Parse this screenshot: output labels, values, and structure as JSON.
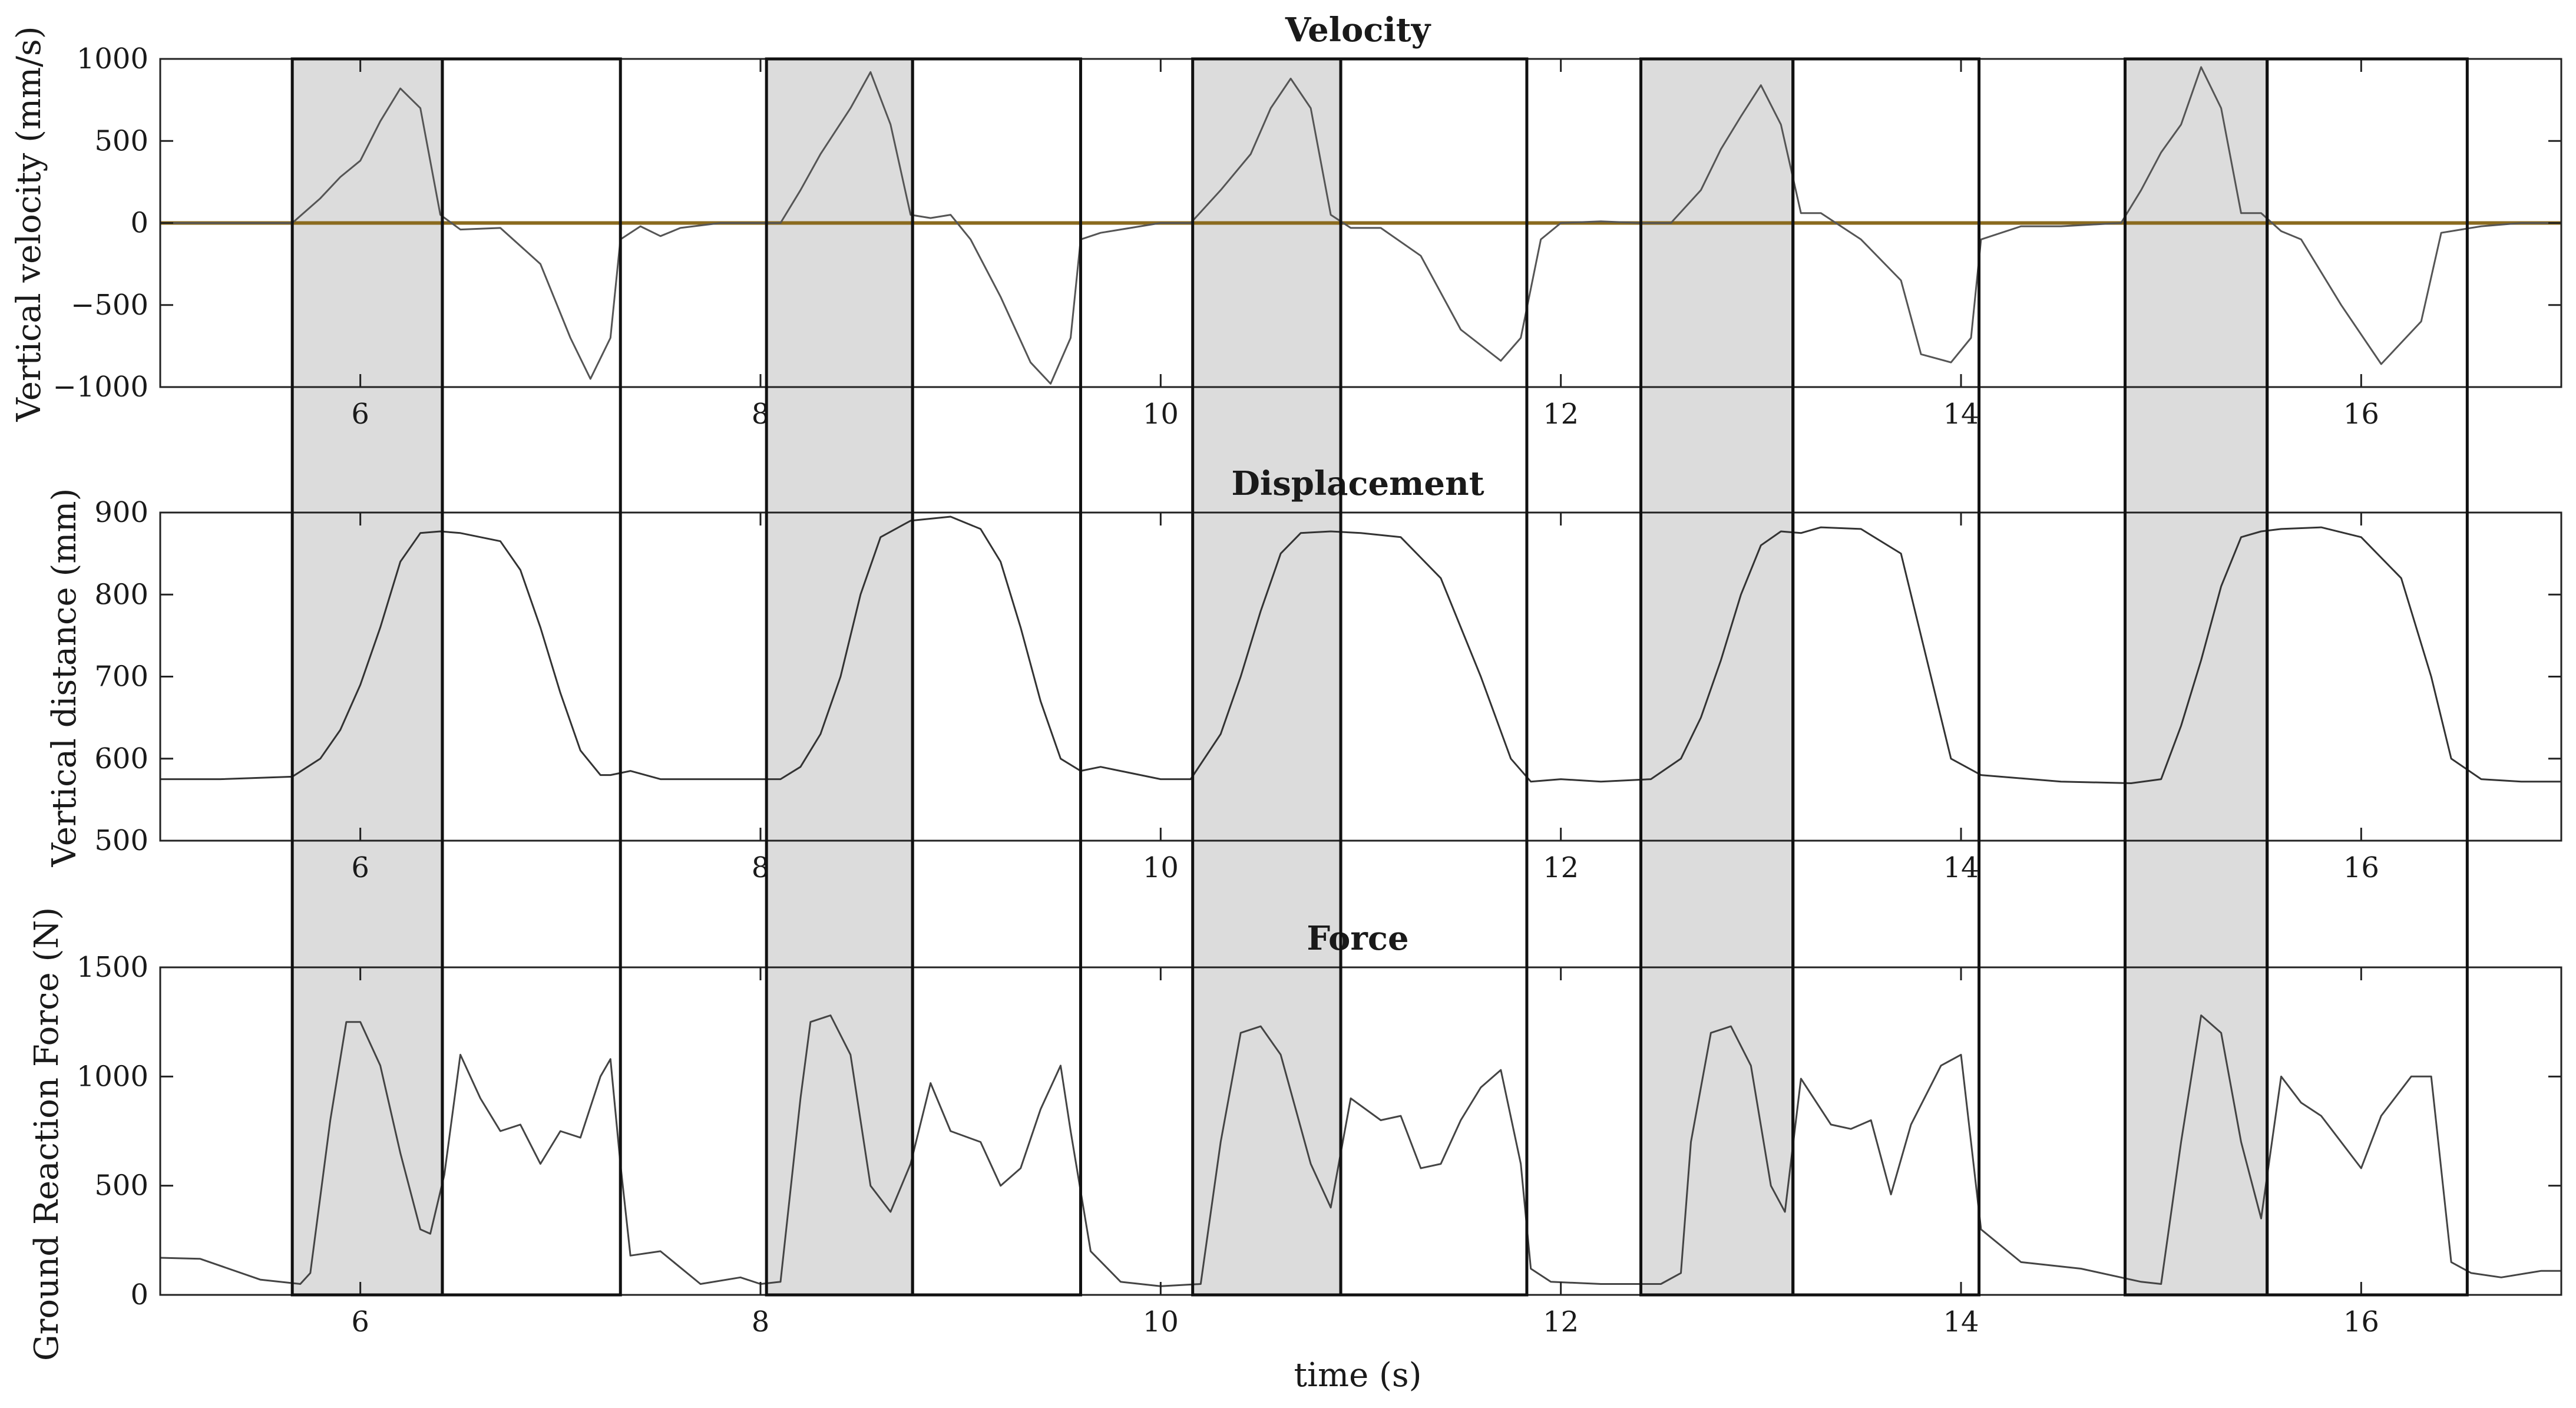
{
  "chart_data": [
    {
      "type": "line",
      "title": "Velocity",
      "xlabel": "",
      "ylabel": "Vertical velocity (mm/s)",
      "xlim": [
        5,
        17
      ],
      "ylim": [
        -1000,
        1000
      ],
      "xticks": [
        6,
        8,
        10,
        12,
        14,
        16
      ],
      "yticks": [
        -1000,
        -500,
        0,
        500,
        1000
      ],
      "grid": false,
      "zero_line_color": "#8a6a1e",
      "series": [
        {
          "color": "#555555",
          "x": [
            5.0,
            5.3,
            5.6,
            5.66,
            5.8,
            5.9,
            6.0,
            6.1,
            6.2,
            6.3,
            6.4,
            6.5,
            6.7,
            6.9,
            7.05,
            7.15,
            7.25,
            7.3,
            7.4,
            7.5,
            7.6,
            7.8,
            8.0,
            8.1,
            8.2,
            8.3,
            8.45,
            8.55,
            8.65,
            8.75,
            8.85,
            8.95,
            9.05,
            9.2,
            9.35,
            9.45,
            9.55,
            9.6,
            9.7,
            9.8,
            10.0,
            10.15,
            10.3,
            10.45,
            10.55,
            10.65,
            10.75,
            10.85,
            10.95,
            11.1,
            11.3,
            11.5,
            11.7,
            11.8,
            11.9,
            12.0,
            12.2,
            12.4,
            12.55,
            12.7,
            12.8,
            12.9,
            13.0,
            13.1,
            13.2,
            13.3,
            13.5,
            13.7,
            13.8,
            13.95,
            14.05,
            14.1,
            14.3,
            14.5,
            14.8,
            14.9,
            15.0,
            15.1,
            15.2,
            15.3,
            15.4,
            15.5,
            15.6,
            15.7,
            15.9,
            16.1,
            16.3,
            16.4,
            16.5,
            16.6,
            16.8,
            17.0
          ],
          "y": [
            0,
            0,
            0,
            0,
            150,
            280,
            380,
            620,
            820,
            700,
            50,
            -40,
            -30,
            -250,
            -700,
            -950,
            -700,
            -100,
            -20,
            -80,
            -30,
            0,
            0,
            0,
            200,
            420,
            700,
            920,
            600,
            50,
            30,
            50,
            -100,
            -450,
            -850,
            -980,
            -700,
            -100,
            -60,
            -40,
            0,
            0,
            200,
            420,
            700,
            880,
            700,
            50,
            -30,
            -30,
            -200,
            -650,
            -840,
            -700,
            -100,
            0,
            10,
            0,
            0,
            200,
            450,
            650,
            840,
            600,
            60,
            60,
            -100,
            -350,
            -800,
            -850,
            -700,
            -100,
            -20,
            -20,
            0,
            200,
            430,
            600,
            950,
            700,
            60,
            60,
            -50,
            -100,
            -500,
            -860,
            -600,
            -60,
            -40,
            -20,
            0,
            0
          ]
        }
      ]
    },
    {
      "type": "line",
      "title": "Displacement",
      "xlabel": "",
      "ylabel": "Vertical distance (mm)",
      "xlim": [
        5,
        17
      ],
      "ylim": [
        500,
        900
      ],
      "xticks": [
        6,
        8,
        10,
        12,
        14,
        16
      ],
      "yticks": [
        500,
        600,
        700,
        800,
        900
      ],
      "grid": false,
      "series": [
        {
          "color": "#333333",
          "x": [
            5.0,
            5.3,
            5.66,
            5.8,
            5.9,
            6.0,
            6.1,
            6.2,
            6.3,
            6.4,
            6.5,
            6.7,
            6.8,
            6.9,
            7.0,
            7.1,
            7.2,
            7.25,
            7.35,
            7.5,
            7.8,
            8.1,
            8.2,
            8.3,
            8.4,
            8.5,
            8.6,
            8.75,
            8.95,
            9.1,
            9.2,
            9.3,
            9.4,
            9.5,
            9.6,
            9.7,
            10.0,
            10.15,
            10.3,
            10.4,
            10.5,
            10.6,
            10.7,
            10.85,
            11.0,
            11.2,
            11.4,
            11.6,
            11.75,
            11.85,
            12.0,
            12.2,
            12.45,
            12.6,
            12.7,
            12.8,
            12.9,
            13.0,
            13.1,
            13.2,
            13.3,
            13.5,
            13.7,
            13.85,
            13.95,
            14.1,
            14.5,
            14.85,
            15.0,
            15.1,
            15.2,
            15.3,
            15.4,
            15.5,
            15.6,
            15.8,
            16.0,
            16.2,
            16.35,
            16.45,
            16.6,
            16.8,
            17.0
          ],
          "y": [
            575,
            575,
            578,
            600,
            635,
            690,
            760,
            840,
            875,
            877,
            875,
            865,
            830,
            760,
            680,
            610,
            580,
            580,
            585,
            575,
            575,
            575,
            590,
            630,
            700,
            800,
            870,
            890,
            895,
            880,
            840,
            760,
            670,
            600,
            585,
            590,
            575,
            575,
            630,
            700,
            780,
            850,
            875,
            877,
            875,
            870,
            820,
            700,
            600,
            572,
            575,
            572,
            575,
            600,
            650,
            720,
            800,
            860,
            877,
            875,
            882,
            880,
            850,
            700,
            600,
            580,
            572,
            570,
            575,
            640,
            720,
            810,
            870,
            877,
            880,
            882,
            870,
            820,
            700,
            600,
            575,
            572,
            572
          ]
        }
      ]
    },
    {
      "type": "line",
      "title": "Force",
      "xlabel": "time (s)",
      "ylabel": "Ground Reaction Force (N)",
      "xlim": [
        5,
        17
      ],
      "ylim": [
        0,
        1500
      ],
      "xticks": [
        6,
        8,
        10,
        12,
        14,
        16
      ],
      "yticks": [
        0,
        500,
        1000,
        1500
      ],
      "grid": false,
      "series": [
        {
          "color": "#444444",
          "x": [
            5.0,
            5.2,
            5.5,
            5.7,
            5.75,
            5.85,
            5.93,
            6.0,
            6.1,
            6.2,
            6.3,
            6.35,
            6.42,
            6.5,
            6.6,
            6.7,
            6.8,
            6.9,
            7.0,
            7.1,
            7.2,
            7.25,
            7.3,
            7.35,
            7.5,
            7.7,
            7.9,
            8.0,
            8.1,
            8.2,
            8.25,
            8.35,
            8.45,
            8.55,
            8.65,
            8.75,
            8.85,
            8.95,
            9.1,
            9.2,
            9.3,
            9.4,
            9.5,
            9.55,
            9.65,
            9.8,
            10.0,
            10.2,
            10.3,
            10.4,
            10.5,
            10.6,
            10.75,
            10.85,
            10.95,
            11.1,
            11.2,
            11.3,
            11.4,
            11.5,
            11.6,
            11.7,
            11.8,
            11.85,
            11.95,
            12.2,
            12.5,
            12.6,
            12.65,
            12.75,
            12.85,
            12.95,
            13.05,
            13.12,
            13.2,
            13.35,
            13.45,
            13.55,
            13.65,
            13.75,
            13.9,
            14.0,
            14.1,
            14.3,
            14.6,
            14.9,
            15.0,
            15.1,
            15.2,
            15.3,
            15.4,
            15.5,
            15.6,
            15.7,
            15.8,
            16.0,
            16.1,
            16.25,
            16.35,
            16.45,
            16.55,
            16.7,
            16.9,
            17.0
          ],
          "y": [
            170,
            165,
            70,
            50,
            100,
            800,
            1250,
            1250,
            1050,
            650,
            300,
            280,
            550,
            1100,
            900,
            750,
            780,
            600,
            750,
            720,
            1000,
            1080,
            600,
            180,
            200,
            50,
            80,
            50,
            60,
            900,
            1250,
            1280,
            1100,
            500,
            380,
            600,
            970,
            750,
            700,
            500,
            580,
            850,
            1050,
            750,
            200,
            60,
            40,
            50,
            700,
            1200,
            1230,
            1100,
            600,
            400,
            900,
            800,
            820,
            580,
            600,
            800,
            950,
            1030,
            600,
            120,
            60,
            50,
            50,
            100,
            700,
            1200,
            1230,
            1050,
            500,
            380,
            990,
            780,
            760,
            800,
            460,
            780,
            1050,
            1100,
            300,
            150,
            120,
            60,
            50,
            700,
            1280,
            1200,
            700,
            350,
            1000,
            880,
            820,
            580,
            820,
            1000,
            1000,
            150,
            100,
            80,
            110,
            110
          ]
        }
      ]
    }
  ],
  "phases": [
    {
      "start": 5.66,
      "end": 6.41,
      "shaded": true
    },
    {
      "start": 6.41,
      "end": 7.3,
      "shaded": false
    },
    {
      "start": 8.03,
      "end": 8.76,
      "shaded": true
    },
    {
      "start": 8.76,
      "end": 9.6,
      "shaded": false
    },
    {
      "start": 10.16,
      "end": 10.9,
      "shaded": true
    },
    {
      "start": 10.9,
      "end": 11.83,
      "shaded": false
    },
    {
      "start": 12.4,
      "end": 13.16,
      "shaded": true
    },
    {
      "start": 13.16,
      "end": 14.09,
      "shaded": false
    },
    {
      "start": 14.82,
      "end": 15.53,
      "shaded": true
    },
    {
      "start": 15.53,
      "end": 16.53,
      "shaded": false
    }
  ],
  "colors": {
    "shade": "#dcdcdc",
    "frame": "#222222",
    "box": "#111111"
  }
}
